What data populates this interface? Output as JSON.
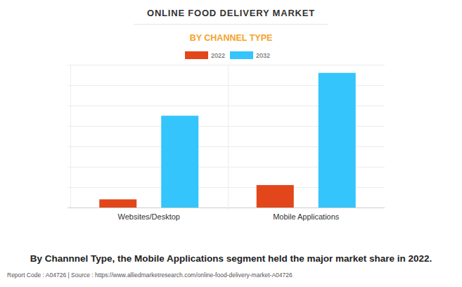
{
  "chart_data": {
    "type": "bar",
    "title": "ONLINE FOOD DELIVERY MARKET",
    "subtitle": "BY CHANNEL TYPE",
    "categories": [
      "Websites/Desktop",
      "Mobile Applications"
    ],
    "series": [
      {
        "name": "2022",
        "color": "#e2461a",
        "values": [
          0.4,
          1.1
        ]
      },
      {
        "name": "2032",
        "color": "#33c5fb",
        "values": [
          4.5,
          6.6
        ]
      }
    ],
    "ylim": [
      0,
      7
    ],
    "yticks": [
      0,
      1,
      2,
      3,
      4,
      5,
      6,
      7
    ],
    "grid": true,
    "tick_labels": "x",
    "legend": "top",
    "annotations": [
      "By Channnel Type, the Mobile Applications segment held the major market share in 2022.",
      "Report Code : A04726  |  Source : https://www.alliedmarketresearch.com/online-food-delivery-market-A04726"
    ]
  }
}
